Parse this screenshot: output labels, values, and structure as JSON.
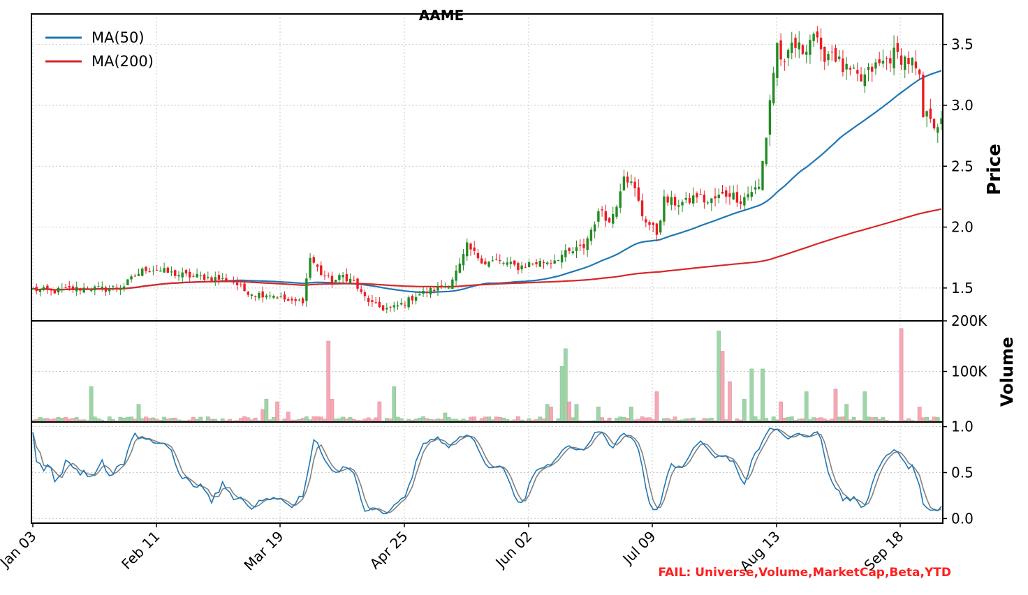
{
  "title": "AAME",
  "fail_text": "FAIL: Universe,Volume,MarketCap,Beta,YTD",
  "colors": {
    "up": "#228b22",
    "down": "#ed1c24",
    "ma50": "#1f77b4",
    "ma200": "#d62728",
    "vol_up": "#9fd4a8",
    "vol_down": "#f5a8b4",
    "stoch_k": "#1f77b4",
    "stoch_d": "#808080",
    "grid": "#c8c8c8",
    "fail": "#ff1f1f"
  },
  "x_tick_labels": [
    "Jan 03",
    "Feb 11",
    "Mar 19",
    "Apr 25",
    "Jun 02",
    "Jul 09",
    "Aug 13",
    "Sep 18"
  ],
  "legend": [
    {
      "name": "MA(50)",
      "color": "#1f77b4"
    },
    {
      "name": "MA(200)",
      "color": "#d62728"
    }
  ],
  "chart_data": [
    {
      "type": "candlestick",
      "title": "AAME",
      "ylabel": "Price",
      "ylim": [
        1.23,
        3.75
      ],
      "yticks": [
        1.5,
        2.0,
        2.5,
        3.0,
        3.5
      ],
      "ytick_labels": [
        "1.5",
        "2.0",
        "2.5",
        "3.0",
        "3.5"
      ],
      "legend_position": "top-left",
      "grid": true,
      "price_anchors": [
        [
          0,
          1.49
        ],
        [
          5,
          1.47
        ],
        [
          10,
          1.49
        ],
        [
          15,
          1.5
        ],
        [
          20,
          1.49
        ],
        [
          25,
          1.52
        ],
        [
          28,
          1.6
        ],
        [
          31,
          1.66
        ],
        [
          34,
          1.65
        ],
        [
          38,
          1.62
        ],
        [
          42,
          1.6
        ],
        [
          47,
          1.59
        ],
        [
          52,
          1.57
        ],
        [
          55,
          1.55
        ],
        [
          58,
          1.48
        ],
        [
          61,
          1.45
        ],
        [
          65,
          1.45
        ],
        [
          68,
          1.42
        ],
        [
          71,
          1.38
        ],
        [
          74,
          1.4
        ],
        [
          76,
          1.75
        ],
        [
          79,
          1.62
        ],
        [
          82,
          1.55
        ],
        [
          85,
          1.6
        ],
        [
          88,
          1.55
        ],
        [
          90,
          1.45
        ],
        [
          93,
          1.37
        ],
        [
          96,
          1.33
        ],
        [
          99,
          1.34
        ],
        [
          102,
          1.38
        ],
        [
          105,
          1.44
        ],
        [
          108,
          1.47
        ],
        [
          111,
          1.5
        ],
        [
          114,
          1.53
        ],
        [
          117,
          1.68
        ],
        [
          119,
          1.84
        ],
        [
          121,
          1.78
        ],
        [
          124,
          1.71
        ],
        [
          127,
          1.72
        ],
        [
          130,
          1.7
        ],
        [
          133,
          1.67
        ],
        [
          136,
          1.7
        ],
        [
          139,
          1.71
        ],
        [
          142,
          1.72
        ],
        [
          145,
          1.77
        ],
        [
          148,
          1.8
        ],
        [
          151,
          1.84
        ],
        [
          154,
          2.05
        ],
        [
          156,
          2.15
        ],
        [
          158,
          2.03
        ],
        [
          160,
          2.2
        ],
        [
          162,
          2.45
        ],
        [
          165,
          2.3
        ],
        [
          167,
          2.1
        ],
        [
          169,
          2.02
        ],
        [
          171,
          1.95
        ],
        [
          173,
          2.22
        ],
        [
          176,
          2.2
        ],
        [
          179,
          2.2
        ],
        [
          182,
          2.26
        ],
        [
          185,
          2.2
        ],
        [
          188,
          2.25
        ],
        [
          191,
          2.28
        ],
        [
          194,
          2.22
        ],
        [
          197,
          2.3
        ],
        [
          199,
          2.32
        ],
        [
          201,
          2.75
        ],
        [
          202,
          3.05
        ],
        [
          204,
          3.5
        ],
        [
          206,
          3.3
        ],
        [
          208,
          3.5
        ],
        [
          211,
          3.45
        ],
        [
          214,
          3.6
        ],
        [
          216,
          3.4
        ],
        [
          219,
          3.45
        ],
        [
          222,
          3.3
        ],
        [
          225,
          3.25
        ],
        [
          227,
          3.2
        ],
        [
          230,
          3.3
        ],
        [
          233,
          3.35
        ],
        [
          236,
          3.42
        ],
        [
          239,
          3.38
        ],
        [
          241,
          3.35
        ],
        [
          243,
          3.2
        ],
        [
          244,
          2.9
        ],
        [
          246,
          2.92
        ],
        [
          247,
          2.85
        ]
      ],
      "volume_spikes": [
        [
          16,
          70000
        ],
        [
          29,
          35000
        ],
        [
          63,
          25000
        ],
        [
          64,
          45000
        ],
        [
          67,
          40000
        ],
        [
          70,
          20000
        ],
        [
          81,
          160000
        ],
        [
          82,
          45000
        ],
        [
          95,
          40000
        ],
        [
          99,
          70000
        ],
        [
          113,
          18000
        ],
        [
          141,
          35000
        ],
        [
          142,
          30000
        ],
        [
          145,
          110000
        ],
        [
          146,
          145000
        ],
        [
          147,
          40000
        ],
        [
          149,
          35000
        ],
        [
          155,
          30000
        ],
        [
          164,
          30000
        ],
        [
          171,
          60000
        ],
        [
          188,
          180000
        ],
        [
          189,
          140000
        ],
        [
          191,
          80000
        ],
        [
          195,
          45000
        ],
        [
          197,
          105000
        ],
        [
          200,
          105000
        ],
        [
          205,
          40000
        ],
        [
          212,
          60000
        ],
        [
          220,
          65000
        ],
        [
          223,
          35000
        ],
        [
          228,
          60000
        ],
        [
          238,
          185000
        ],
        [
          243,
          30000
        ]
      ]
    },
    {
      "type": "bar",
      "ylabel": "Volume",
      "ylim": [
        0,
        200000
      ],
      "yticks": [
        100000,
        200000
      ],
      "ytick_labels": [
        "100K",
        "200K"
      ],
      "grid": true
    },
    {
      "type": "line",
      "ylim": [
        -0.05,
        1.05
      ],
      "yticks": [
        0.0,
        0.5,
        1.0
      ],
      "ytick_labels": [
        "0.0",
        "0.5",
        "1.0"
      ],
      "grid": true,
      "series": [
        {
          "key": "k",
          "color": "#1f77b4"
        },
        {
          "key": "d",
          "color": "#808080"
        }
      ]
    }
  ]
}
